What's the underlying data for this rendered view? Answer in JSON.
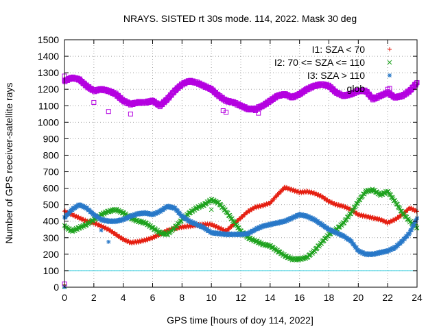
{
  "chart_data": {
    "type": "scatter",
    "title": "NRAYS. SISTED rt 30s mode. 114, 2022. Mask 30 deg",
    "xlabel": "GPS time [hours of doy 114, 2022]",
    "ylabel": "Number of GPS receiver-satellite rays",
    "xlim": [
      0,
      24
    ],
    "ylim": [
      0,
      1500
    ],
    "x_ticks": [
      0,
      2,
      4,
      6,
      8,
      10,
      12,
      14,
      16,
      18,
      20,
      22,
      24
    ],
    "y_ticks": [
      0,
      100,
      200,
      300,
      400,
      500,
      600,
      700,
      800,
      900,
      1000,
      1100,
      1200,
      1300,
      1400,
      1500
    ],
    "grid": true,
    "legend_position": "top-right",
    "reference_line": {
      "y": 100,
      "color": "#40d0e0"
    },
    "series": [
      {
        "name": "I1: SZA < 70",
        "marker": "+",
        "color": "#e51e10",
        "x": [
          0,
          0.5,
          1,
          1.5,
          2,
          2.5,
          3,
          3.5,
          4,
          4.5,
          5,
          5.5,
          6,
          6.5,
          7,
          7.5,
          8,
          8.5,
          9,
          9.5,
          10,
          10.5,
          11,
          11.5,
          12,
          12.5,
          13,
          13.5,
          14,
          14.5,
          15,
          15.5,
          16,
          16.5,
          17,
          17.5,
          18,
          18.5,
          19,
          19.5,
          20,
          20.5,
          21,
          21.5,
          22,
          22.5,
          23,
          23.5,
          24
        ],
        "y": [
          460,
          440,
          420,
          400,
          390,
          370,
          350,
          320,
          290,
          270,
          275,
          285,
          300,
          320,
          345,
          355,
          365,
          370,
          375,
          380,
          380,
          360,
          340,
          380,
          420,
          460,
          485,
          495,
          510,
          560,
          605,
          590,
          575,
          580,
          570,
          550,
          520,
          500,
          490,
          470,
          440,
          430,
          420,
          410,
          390,
          410,
          440,
          480,
          460
        ]
      },
      {
        "name": "I2: 70 <= SZA <= 110",
        "marker": "x",
        "color": "#1ea21e",
        "x": [
          0,
          0.5,
          1,
          1.5,
          2,
          2.5,
          3,
          3.5,
          4,
          4.5,
          5,
          5.5,
          6,
          6.5,
          7,
          7.5,
          8,
          8.5,
          9,
          9.5,
          10,
          10.5,
          11,
          11.5,
          12,
          12.5,
          13,
          13.5,
          14,
          14.5,
          15,
          15.5,
          16,
          16.5,
          17,
          17.5,
          18,
          18.5,
          19,
          19.5,
          20,
          20.5,
          21,
          21.5,
          22,
          22.5,
          23,
          23.5,
          24
        ],
        "y": [
          370,
          340,
          360,
          380,
          410,
          440,
          460,
          470,
          450,
          420,
          400,
          390,
          360,
          330,
          320,
          360,
          410,
          450,
          480,
          500,
          530,
          510,
          460,
          400,
          340,
          300,
          280,
          260,
          250,
          220,
          190,
          170,
          170,
          180,
          220,
          270,
          320,
          350,
          390,
          450,
          520,
          580,
          590,
          560,
          580,
          520,
          450,
          400,
          360
        ]
      },
      {
        "name": "I3: SZA > 110",
        "marker": "*",
        "color": "#2878c8",
        "x": [
          0,
          0.5,
          1,
          1.5,
          2,
          2.5,
          3,
          3.5,
          4,
          4.5,
          5,
          5.5,
          6,
          6.5,
          7,
          7.5,
          8,
          8.5,
          9,
          9.5,
          10,
          10.5,
          11,
          11.5,
          12,
          12.5,
          13,
          13.5,
          14,
          14.5,
          15,
          15.5,
          16,
          16.5,
          17,
          17.5,
          18,
          18.5,
          19,
          19.5,
          20,
          20.5,
          21,
          21.5,
          22,
          22.5,
          23,
          23.5,
          24
        ],
        "y": [
          420,
          470,
          500,
          480,
          440,
          410,
          400,
          400,
          410,
          430,
          445,
          450,
          440,
          460,
          490,
          480,
          430,
          400,
          380,
          360,
          330,
          325,
          320,
          320,
          320,
          325,
          350,
          370,
          380,
          390,
          400,
          420,
          440,
          430,
          410,
          380,
          350,
          330,
          310,
          280,
          220,
          200,
          200,
          210,
          220,
          240,
          280,
          330,
          420
        ]
      },
      {
        "name": "glob",
        "marker": "square",
        "color": "#b400e0",
        "x": [
          0,
          0.5,
          1,
          1.5,
          2,
          2.5,
          3,
          3.5,
          4,
          4.5,
          5,
          5.5,
          6,
          6.5,
          7,
          7.5,
          8,
          8.5,
          9,
          9.5,
          10,
          10.5,
          11,
          11.5,
          12,
          12.5,
          13,
          13.5,
          14,
          14.5,
          15,
          15.5,
          16,
          16.5,
          17,
          17.5,
          18,
          18.5,
          19,
          19.5,
          20,
          20.5,
          21,
          21.5,
          22,
          22.5,
          23,
          23.5,
          24
        ],
        "y": [
          1250,
          1270,
          1260,
          1220,
          1190,
          1200,
          1190,
          1170,
          1130,
          1110,
          1120,
          1120,
          1130,
          1100,
          1140,
          1190,
          1230,
          1250,
          1240,
          1220,
          1200,
          1160,
          1130,
          1120,
          1100,
          1080,
          1080,
          1100,
          1130,
          1160,
          1170,
          1150,
          1170,
          1200,
          1220,
          1230,
          1220,
          1180,
          1160,
          1170,
          1190,
          1190,
          1140,
          1160,
          1180,
          1150,
          1160,
          1190,
          1240
        ]
      }
    ],
    "outliers": {
      "glob": {
        "x": [
          0,
          0,
          2,
          3,
          4.5,
          10.8,
          11,
          13,
          13.2,
          22
        ],
        "y": [
          20,
          1280,
          1120,
          1065,
          1050,
          1070,
          1060,
          1070,
          1055,
          1200
        ]
      },
      "I1: SZA < 70": {
        "x": [
          0
        ],
        "y": [
          15
        ]
      },
      "I2: 70 <= SZA <= 110": {
        "x": [
          0,
          10
        ],
        "y": [
          5,
          470
        ]
      },
      "I3: SZA > 110": {
        "x": [
          0,
          2.5,
          3
        ],
        "y": [
          0,
          345,
          275
        ]
      }
    }
  }
}
